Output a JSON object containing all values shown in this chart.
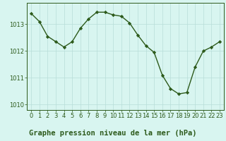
{
  "x": [
    0,
    1,
    2,
    3,
    4,
    5,
    6,
    7,
    8,
    9,
    10,
    11,
    12,
    13,
    14,
    15,
    16,
    17,
    18,
    19,
    20,
    21,
    22,
    23
  ],
  "y": [
    1013.4,
    1013.1,
    1012.55,
    1012.35,
    1012.15,
    1012.35,
    1012.85,
    1013.2,
    1013.45,
    1013.45,
    1013.35,
    1013.3,
    1013.05,
    1012.6,
    1012.2,
    1011.95,
    1011.1,
    1010.6,
    1010.4,
    1010.45,
    1011.4,
    1012.0,
    1012.15,
    1012.35
  ],
  "line_color": "#2d5a1b",
  "marker": "D",
  "marker_size": 2.2,
  "bg_color": "#d8f5f0",
  "grid_color": "#b8ddd8",
  "xlabel": "Graphe pression niveau de la mer (hPa)",
  "xlabel_fontsize": 7.5,
  "xlabel_fontweight": "bold",
  "xlabel_color": "#2d5a1b",
  "ylim": [
    1009.8,
    1013.8
  ],
  "xlim": [
    -0.5,
    23.5
  ],
  "yticks": [
    1010,
    1011,
    1012,
    1013
  ],
  "xticks": [
    0,
    1,
    2,
    3,
    4,
    5,
    6,
    7,
    8,
    9,
    10,
    11,
    12,
    13,
    14,
    15,
    16,
    17,
    18,
    19,
    20,
    21,
    22,
    23
  ],
  "tick_fontsize": 6.0,
  "tick_color": "#2d5a1b",
  "spine_color": "#2d5a1b",
  "line_width": 1.0
}
